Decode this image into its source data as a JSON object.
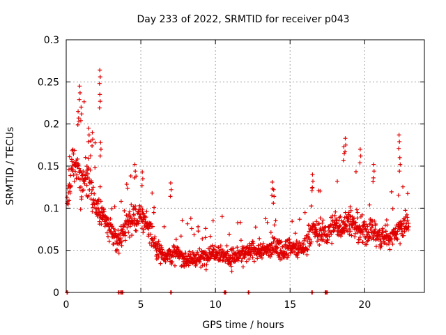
{
  "chart_data": {
    "type": "scatter",
    "title": "Day 233 of 2022, SRMTID for receiver p043",
    "xlabel": "GPS time / hours",
    "ylabel": "SRMTID / TECUs",
    "xlim": [
      0,
      24
    ],
    "ylim": [
      0,
      0.3
    ],
    "x_ticks": [
      0,
      5,
      10,
      15,
      20
    ],
    "x_tick_labels": [
      "0",
      "5",
      "10",
      "15",
      "20"
    ],
    "y_ticks": [
      0,
      0.05,
      0.1,
      0.15,
      0.2,
      0.25,
      0.3
    ],
    "y_tick_labels": [
      "0",
      "0.05",
      "0.1",
      "0.15",
      "0.2",
      "0.25",
      "0.3"
    ],
    "grid": true,
    "marker": "+",
    "color": "#e00000",
    "series": [
      {
        "name": "SRMTID",
        "envelope": {
          "hours": [
            0,
            0.5,
            1,
            1.5,
            2,
            2.5,
            3,
            3.5,
            4,
            4.5,
            5,
            5.5,
            6,
            6.5,
            7,
            7.5,
            8,
            8.5,
            9,
            9.5,
            10,
            10.5,
            11,
            11.5,
            12,
            12.5,
            13,
            13.5,
            14,
            14.5,
            15,
            15.5,
            16,
            16.5,
            17,
            17.5,
            18,
            18.5,
            19,
            19.5,
            20,
            20.5,
            21,
            21.5,
            22,
            22.5,
            23
          ],
          "typical": [
            0.1,
            0.16,
            0.13,
            0.14,
            0.1,
            0.09,
            0.07,
            0.06,
            0.08,
            0.09,
            0.09,
            0.08,
            0.055,
            0.045,
            0.045,
            0.045,
            0.04,
            0.04,
            0.04,
            0.045,
            0.05,
            0.045,
            0.04,
            0.045,
            0.045,
            0.05,
            0.05,
            0.05,
            0.055,
            0.05,
            0.055,
            0.05,
            0.055,
            0.075,
            0.07,
            0.07,
            0.08,
            0.08,
            0.085,
            0.075,
            0.07,
            0.075,
            0.065,
            0.065,
            0.07,
            0.08,
            0.08
          ],
          "spread": [
            0.03,
            0.05,
            0.045,
            0.045,
            0.03,
            0.03,
            0.025,
            0.025,
            0.03,
            0.03,
            0.03,
            0.03,
            0.02,
            0.02,
            0.02,
            0.02,
            0.02,
            0.02,
            0.02,
            0.02,
            0.02,
            0.02,
            0.02,
            0.02,
            0.02,
            0.02,
            0.02,
            0.02,
            0.02,
            0.02,
            0.02,
            0.02,
            0.02,
            0.025,
            0.025,
            0.025,
            0.03,
            0.03,
            0.03,
            0.03,
            0.03,
            0.03,
            0.025,
            0.025,
            0.025,
            0.03,
            0.03
          ]
        },
        "peaks": [
          {
            "x": 0.8,
            "y": 0.215
          },
          {
            "x": 0.9,
            "y": 0.245
          },
          {
            "x": 1.0,
            "y": 0.22
          },
          {
            "x": 1.5,
            "y": 0.195
          },
          {
            "x": 1.75,
            "y": 0.19
          },
          {
            "x": 2.25,
            "y": 0.264
          },
          {
            "x": 2.25,
            "y": 0.235
          },
          {
            "x": 2.3,
            "y": 0.178
          },
          {
            "x": 4.6,
            "y": 0.152
          },
          {
            "x": 5.1,
            "y": 0.143
          },
          {
            "x": 7.0,
            "y": 0.13
          },
          {
            "x": 13.8,
            "y": 0.131
          },
          {
            "x": 16.5,
            "y": 0.14
          },
          {
            "x": 18.7,
            "y": 0.183
          },
          {
            "x": 19.7,
            "y": 0.17
          },
          {
            "x": 20.6,
            "y": 0.152
          },
          {
            "x": 22.3,
            "y": 0.187
          },
          {
            "x": 22.35,
            "y": 0.16
          },
          {
            "x": 13.9,
            "y": 0.122
          },
          {
            "x": 18.6,
            "y": 0.173
          }
        ],
        "zero_points": [
          0.05,
          3.5,
          3.65,
          3.75,
          7.0,
          10.6,
          10.65,
          12.2,
          16.45,
          17.35,
          17.45
        ]
      }
    ]
  }
}
